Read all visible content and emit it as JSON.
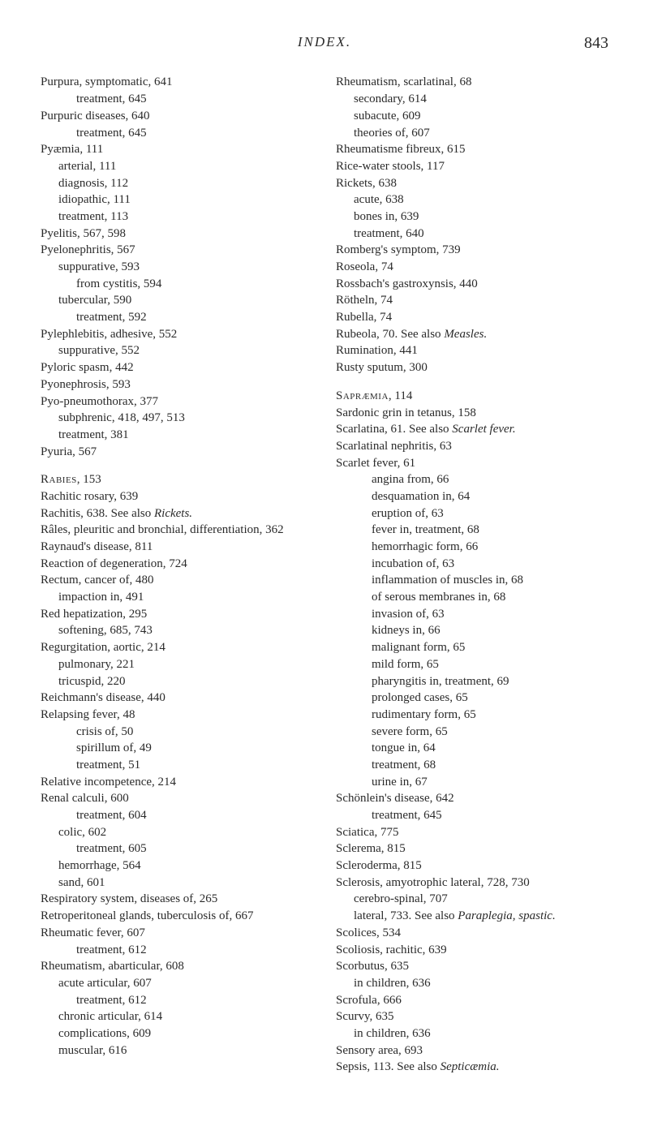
{
  "header": {
    "title": "INDEX.",
    "page_number": "843"
  },
  "left": [
    {
      "t": "Purpura, symptomatic, 641",
      "l": 0
    },
    {
      "t": "treatment, 645",
      "l": 2
    },
    {
      "t": "Purpuric diseases, 640",
      "l": 0
    },
    {
      "t": "treatment, 645",
      "l": 2
    },
    {
      "t": "Pyæmia, 111",
      "l": 0
    },
    {
      "t": "arterial, 111",
      "l": 1
    },
    {
      "t": "diagnosis, 112",
      "l": 1
    },
    {
      "t": "idiopathic, 111",
      "l": 1
    },
    {
      "t": "treatment, 113",
      "l": 1
    },
    {
      "t": "Pyelitis, 567, 598",
      "l": 0
    },
    {
      "t": "Pyelonephritis, 567",
      "l": 0
    },
    {
      "t": "suppurative, 593",
      "l": 1
    },
    {
      "t": "from cystitis, 594",
      "l": 2
    },
    {
      "t": "tubercular, 590",
      "l": 1
    },
    {
      "t": "treatment, 592",
      "l": 2
    },
    {
      "t": "Pylephlebitis, adhesive, 552",
      "l": 0
    },
    {
      "t": "suppurative, 552",
      "l": 1
    },
    {
      "t": "Pyloric spasm, 442",
      "l": 0
    },
    {
      "t": "Pyonephrosis, 593",
      "l": 0
    },
    {
      "t": "Pyo-pneumothorax, 377",
      "l": 0
    },
    {
      "t": "subphrenic, 418, 497, 513",
      "l": 1
    },
    {
      "t": "treatment, 381",
      "l": 1
    },
    {
      "t": "Pyuria, 567",
      "l": 0
    },
    {
      "t": "Rabies, 153",
      "l": 0,
      "gap": true,
      "sc": "Rabies"
    },
    {
      "t": "Rachitic rosary, 639",
      "l": 0
    },
    {
      "t": "Rachitis, 638.  See also Rickets.",
      "l": 0,
      "ital": "Rickets."
    },
    {
      "t": "Râles, pleuritic and bronchial, differentiation, 362",
      "l": 0
    },
    {
      "t": "Raynaud's disease, 811",
      "l": 0
    },
    {
      "t": "Reaction of degeneration, 724",
      "l": 0
    },
    {
      "t": "Rectum, cancer of, 480",
      "l": 0
    },
    {
      "t": "impaction in, 491",
      "l": 1
    },
    {
      "t": "Red hepatization, 295",
      "l": 0
    },
    {
      "t": "softening, 685, 743",
      "l": 1
    },
    {
      "t": "Regurgitation, aortic, 214",
      "l": 0
    },
    {
      "t": "pulmonary, 221",
      "l": 1
    },
    {
      "t": "tricuspid, 220",
      "l": 1
    },
    {
      "t": "Reichmann's disease, 440",
      "l": 0
    },
    {
      "t": "Relapsing fever, 48",
      "l": 0
    },
    {
      "t": "crisis of, 50",
      "l": 2
    },
    {
      "t": "spirillum of, 49",
      "l": 2
    },
    {
      "t": "treatment, 51",
      "l": 2
    },
    {
      "t": "Relative incompetence, 214",
      "l": 0
    },
    {
      "t": "Renal calculi, 600",
      "l": 0
    },
    {
      "t": "treatment, 604",
      "l": 2
    },
    {
      "t": "colic, 602",
      "l": 1
    },
    {
      "t": "treatment, 605",
      "l": 2
    },
    {
      "t": "hemorrhage, 564",
      "l": 1
    },
    {
      "t": "sand, 601",
      "l": 1
    },
    {
      "t": "Respiratory system, diseases of, 265",
      "l": 0
    },
    {
      "t": "Retroperitoneal glands, tuberculosis of, 667",
      "l": 0
    },
    {
      "t": "Rheumatic fever, 607",
      "l": 0
    },
    {
      "t": "treatment, 612",
      "l": 2
    },
    {
      "t": "Rheumatism, abarticular, 608",
      "l": 0
    },
    {
      "t": "acute articular, 607",
      "l": 1
    },
    {
      "t": "treatment, 612",
      "l": 2
    },
    {
      "t": "chronic articular, 614",
      "l": 1
    },
    {
      "t": "complications, 609",
      "l": 1
    },
    {
      "t": "muscular, 616",
      "l": 1
    }
  ],
  "right": [
    {
      "t": "Rheumatism, scarlatinal, 68",
      "l": 0
    },
    {
      "t": "secondary, 614",
      "l": 1
    },
    {
      "t": "subacute, 609",
      "l": 1
    },
    {
      "t": "theories of, 607",
      "l": 1
    },
    {
      "t": "Rheumatisme fibreux, 615",
      "l": 0
    },
    {
      "t": "Rice-water stools, 117",
      "l": 0
    },
    {
      "t": "Rickets, 638",
      "l": 0
    },
    {
      "t": "acute, 638",
      "l": 1
    },
    {
      "t": "bones in, 639",
      "l": 1
    },
    {
      "t": "treatment, 640",
      "l": 1
    },
    {
      "t": "Romberg's symptom, 739",
      "l": 0
    },
    {
      "t": "Roseola, 74",
      "l": 0
    },
    {
      "t": "Rossbach's gastroxynsis, 440",
      "l": 0
    },
    {
      "t": "Rötheln, 74",
      "l": 0
    },
    {
      "t": "Rubella, 74",
      "l": 0
    },
    {
      "t": "Rubeola, 70.  See also Measles.",
      "l": 0,
      "ital": "Measles."
    },
    {
      "t": "Rumination, 441",
      "l": 0
    },
    {
      "t": "Rusty sputum, 300",
      "l": 0
    },
    {
      "t": "Sapræmia, 114",
      "l": 0,
      "gap": true,
      "sc": "Sapræmia"
    },
    {
      "t": "Sardonic grin in tetanus, 158",
      "l": 0
    },
    {
      "t": "Scarlatina, 61.  See also Scarlet fever.",
      "l": 0,
      "ital": "Scarlet fever."
    },
    {
      "t": "Scarlatinal nephritis, 63",
      "l": 0
    },
    {
      "t": "Scarlet fever, 61",
      "l": 0
    },
    {
      "t": "angina from, 66",
      "l": 2
    },
    {
      "t": "desquamation in, 64",
      "l": 2
    },
    {
      "t": "eruption of, 63",
      "l": 2
    },
    {
      "t": "fever in, treatment, 68",
      "l": 2
    },
    {
      "t": "hemorrhagic form, 66",
      "l": 2
    },
    {
      "t": "incubation of, 63",
      "l": 2
    },
    {
      "t": "inflammation of muscles in, 68",
      "l": 2
    },
    {
      "t": "of serous membranes in, 68",
      "l": 2
    },
    {
      "t": "invasion of, 63",
      "l": 2
    },
    {
      "t": "kidneys in, 66",
      "l": 2
    },
    {
      "t": "malignant form, 65",
      "l": 2
    },
    {
      "t": "mild form, 65",
      "l": 2
    },
    {
      "t": "pharyngitis in, treatment, 69",
      "l": 2
    },
    {
      "t": "prolonged cases, 65",
      "l": 2
    },
    {
      "t": "rudimentary form, 65",
      "l": 2
    },
    {
      "t": "severe form, 65",
      "l": 2
    },
    {
      "t": "tongue in, 64",
      "l": 2
    },
    {
      "t": "treatment, 68",
      "l": 2
    },
    {
      "t": "urine in, 67",
      "l": 2
    },
    {
      "t": "Schönlein's disease, 642",
      "l": 0
    },
    {
      "t": "treatment, 645",
      "l": 2
    },
    {
      "t": "Sciatica, 775",
      "l": 0
    },
    {
      "t": "Sclerema, 815",
      "l": 0
    },
    {
      "t": "Scleroderma, 815",
      "l": 0
    },
    {
      "t": "Sclerosis, amyotrophic lateral, 728, 730",
      "l": 0
    },
    {
      "t": "cerebro-spinal, 707",
      "l": 1
    },
    {
      "t": "lateral, 733.  See also Paraplegia, spastic.",
      "l": 1,
      "ital": "Paraplegia, spastic."
    },
    {
      "t": "Scolices, 534",
      "l": 0
    },
    {
      "t": "Scoliosis, rachitic, 639",
      "l": 0
    },
    {
      "t": "Scorbutus, 635",
      "l": 0
    },
    {
      "t": "in children, 636",
      "l": 1
    },
    {
      "t": "Scrofula, 666",
      "l": 0
    },
    {
      "t": "Scurvy, 635",
      "l": 0
    },
    {
      "t": "in children, 636",
      "l": 1
    },
    {
      "t": "Sensory area, 693",
      "l": 0
    },
    {
      "t": "Sepsis, 113.  See also Septicæmia.",
      "l": 0,
      "ital": "Septicæmia."
    }
  ]
}
